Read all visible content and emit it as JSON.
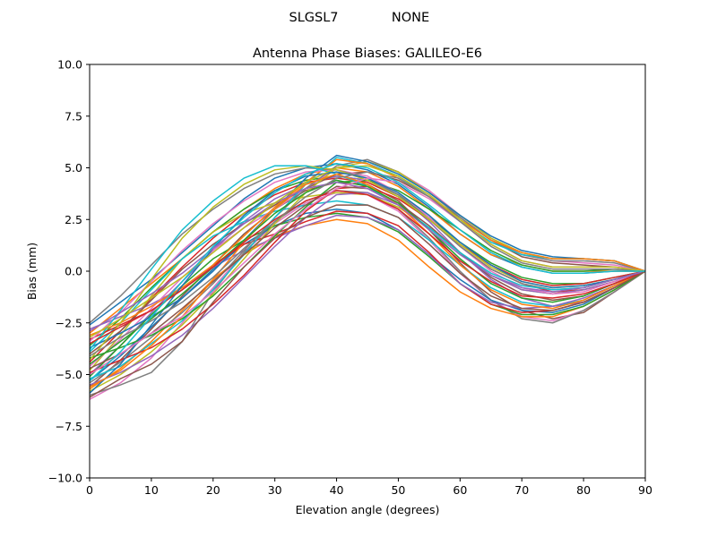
{
  "suptitle_left": "SLGSL7",
  "suptitle_right": "NONE",
  "chart_data": {
    "type": "line",
    "title": "Antenna Phase Biases: GALILEO-E6",
    "xlabel": "Elevation angle (degrees)",
    "ylabel": "Bias (mm)",
    "xlim": [
      0,
      90
    ],
    "ylim": [
      -10,
      10
    ],
    "xticks": [
      "0",
      "10",
      "20",
      "30",
      "40",
      "50",
      "60",
      "70",
      "80",
      "90"
    ],
    "yticks": [
      "10.0",
      "7.5",
      "5.0",
      "2.5",
      "0.0",
      "−2.5",
      "−5.0",
      "−7.5",
      "−10.0"
    ],
    "grid": false,
    "legend": "none",
    "x": [
      0,
      5,
      10,
      15,
      20,
      25,
      30,
      35,
      40,
      45,
      50,
      55,
      60,
      65,
      70,
      75,
      80,
      85,
      90
    ],
    "colors": [
      "#1f77b4",
      "#ff7f0e",
      "#2ca02c",
      "#d62728",
      "#9467bd",
      "#8c564b",
      "#e377c2",
      "#7f7f7f",
      "#bcbd22",
      "#17becf"
    ],
    "series": [
      {
        "values": [
          -2.6,
          -1.5,
          -0.4,
          0.9,
          2.2,
          3.5,
          4.5,
          5.0,
          5.2,
          4.9,
          4.2,
          3.1,
          1.8,
          0.8,
          0.2,
          -0.1,
          -0.1,
          0.0,
          0.0
        ]
      },
      {
        "values": [
          -3.0,
          -1.8,
          -0.6,
          0.6,
          1.9,
          3.0,
          4.0,
          4.7,
          5.0,
          4.8,
          4.1,
          3.0,
          1.8,
          0.8,
          0.3,
          0.0,
          0.0,
          0.0,
          0.0
        ]
      },
      {
        "values": [
          -3.6,
          -2.3,
          -0.8,
          0.6,
          1.9,
          3.0,
          3.9,
          4.4,
          4.6,
          4.4,
          3.7,
          2.6,
          1.4,
          0.4,
          -0.3,
          -0.6,
          -0.6,
          -0.3,
          0.0
        ]
      },
      {
        "values": [
          -4.4,
          -2.9,
          -1.3,
          0.2,
          1.6,
          2.8,
          3.7,
          4.3,
          4.5,
          4.3,
          3.6,
          2.5,
          1.2,
          0.1,
          -0.6,
          -1.0,
          -0.9,
          -0.5,
          0.0
        ]
      },
      {
        "values": [
          -5.0,
          -3.6,
          -2.0,
          -0.5,
          1.0,
          2.4,
          3.5,
          4.2,
          4.6,
          4.4,
          3.7,
          2.4,
          0.9,
          -0.4,
          -1.3,
          -1.7,
          -1.5,
          -0.8,
          0.0
        ]
      },
      {
        "values": [
          -5.6,
          -4.3,
          -2.8,
          -1.2,
          0.3,
          1.8,
          3.0,
          3.9,
          4.3,
          4.2,
          3.4,
          2.0,
          0.4,
          -1.0,
          -1.9,
          -2.3,
          -2.0,
          -1.0,
          0.0
        ]
      },
      {
        "values": [
          -6.2,
          -5.4,
          -4.2,
          -2.5,
          -0.8,
          0.9,
          2.3,
          3.3,
          3.8,
          3.7,
          2.9,
          1.5,
          -0.1,
          -1.4,
          -2.2,
          -2.4,
          -1.9,
          -1.0,
          0.0
        ]
      },
      {
        "values": [
          -6.0,
          -5.5,
          -4.9,
          -3.4,
          -1.0,
          0.9,
          2.4,
          3.4,
          3.9,
          3.8,
          3.0,
          1.6,
          0.0,
          -1.4,
          -2.3,
          -2.5,
          -1.9,
          -1.0,
          0.0
        ]
      },
      {
        "values": [
          -4.8,
          -3.1,
          -1.2,
          0.6,
          1.9,
          2.8,
          3.3,
          3.6,
          3.8,
          3.7,
          3.1,
          2.1,
          0.9,
          -0.2,
          -0.9,
          -1.1,
          -0.9,
          -0.5,
          0.0
        ]
      },
      {
        "values": [
          -3.9,
          -2.5,
          -0.9,
          0.6,
          1.7,
          2.4,
          2.9,
          3.2,
          3.4,
          3.2,
          2.6,
          1.5,
          0.3,
          -0.8,
          -1.5,
          -1.7,
          -1.4,
          -0.7,
          0.0
        ]
      },
      {
        "values": [
          -5.3,
          -4.1,
          -2.7,
          -1.3,
          0.1,
          1.3,
          2.2,
          2.8,
          3.0,
          2.8,
          2.0,
          0.8,
          -0.4,
          -1.4,
          -1.9,
          -2.0,
          -1.6,
          -0.8,
          0.0
        ]
      },
      {
        "values": [
          -5.7,
          -4.7,
          -3.4,
          -1.9,
          -0.4,
          0.8,
          1.7,
          2.2,
          2.5,
          2.3,
          1.5,
          0.2,
          -1.0,
          -1.8,
          -2.2,
          -2.2,
          -1.7,
          -0.9,
          0.0
        ]
      },
      {
        "values": [
          -5.1,
          -3.6,
          -2.1,
          -0.7,
          0.6,
          1.5,
          2.2,
          2.6,
          2.8,
          2.6,
          1.9,
          0.7,
          -0.6,
          -1.6,
          -2.1,
          -2.1,
          -1.7,
          -0.9,
          0.0
        ]
      },
      {
        "values": [
          -3.3,
          -2.6,
          -1.9,
          -0.9,
          0.3,
          1.3,
          1.8,
          2.4,
          2.9,
          2.8,
          2.2,
          0.9,
          -0.6,
          -1.6,
          -2.0,
          -1.9,
          -1.5,
          -0.8,
          0.0
        ]
      },
      {
        "values": [
          -2.8,
          -2.2,
          -1.6,
          -0.8,
          0.2,
          1.0,
          1.6,
          2.2,
          2.7,
          2.6,
          2.0,
          0.8,
          -0.6,
          -1.5,
          -1.8,
          -1.7,
          -1.3,
          -0.7,
          0.0
        ]
      },
      {
        "values": [
          -4.0,
          -2.9,
          -1.4,
          0.1,
          1.3,
          2.3,
          3.2,
          4.0,
          4.7,
          4.8,
          4.4,
          3.6,
          2.6,
          1.5,
          0.7,
          0.4,
          0.3,
          0.2,
          0.0
        ]
      },
      {
        "values": [
          -4.6,
          -3.3,
          -1.8,
          -0.3,
          1.0,
          2.1,
          3.0,
          4.0,
          5.0,
          5.3,
          4.8,
          3.9,
          2.7,
          1.6,
          0.8,
          0.5,
          0.4,
          0.3,
          0.0
        ]
      },
      {
        "values": [
          -5.4,
          -4.4,
          -3.2,
          -2.0,
          -0.6,
          1.0,
          2.6,
          4.0,
          5.1,
          5.4,
          4.8,
          3.8,
          2.6,
          1.5,
          0.8,
          0.5,
          0.5,
          0.4,
          0.0
        ]
      },
      {
        "values": [
          -5.8,
          -5.0,
          -3.9,
          -2.6,
          -1.1,
          0.6,
          2.3,
          3.8,
          5.0,
          5.3,
          4.8,
          3.8,
          2.7,
          1.6,
          0.9,
          0.6,
          0.6,
          0.5,
          0.0
        ]
      },
      {
        "values": [
          -5.2,
          -4.6,
          -3.5,
          -2.4,
          -0.9,
          0.8,
          2.6,
          4.2,
          5.5,
          5.2,
          4.6,
          3.6,
          2.4,
          1.4,
          0.8,
          0.6,
          0.6,
          0.5,
          0.0
        ]
      },
      {
        "values": [
          -3.7,
          -3.0,
          -2.2,
          -1.3,
          0.0,
          1.5,
          3.0,
          4.5,
          5.6,
          5.3,
          4.7,
          3.8,
          2.7,
          1.7,
          1.0,
          0.7,
          0.6,
          0.5,
          0.0
        ]
      },
      {
        "values": [
          -3.1,
          -2.5,
          -1.7,
          -0.8,
          0.3,
          1.7,
          3.1,
          4.3,
          5.4,
          5.2,
          4.5,
          3.6,
          2.5,
          1.5,
          0.9,
          0.6,
          0.6,
          0.5,
          0.0
        ]
      },
      {
        "values": [
          -4.2,
          -3.7,
          -3.1,
          -2.3,
          -1.2,
          0.2,
          1.7,
          3.1,
          4.3,
          4.4,
          3.9,
          3.0,
          2.0,
          1.0,
          0.3,
          0.0,
          0.0,
          0.1,
          0.0
        ]
      },
      {
        "values": [
          -4.9,
          -4.3,
          -3.7,
          -2.8,
          -1.6,
          -0.2,
          1.4,
          2.9,
          4.0,
          4.1,
          3.5,
          2.5,
          1.3,
          0.3,
          -0.4,
          -0.7,
          -0.6,
          -0.3,
          0.0
        ]
      },
      {
        "values": [
          -5.5,
          -4.9,
          -4.1,
          -3.1,
          -1.8,
          -0.3,
          1.2,
          2.6,
          3.7,
          3.8,
          3.2,
          2.1,
          0.9,
          -0.2,
          -0.9,
          -1.1,
          -0.9,
          -0.5,
          0.0
        ]
      },
      {
        "values": [
          -4.7,
          -4.0,
          -3.0,
          -1.8,
          -0.5,
          0.8,
          2.1,
          3.2,
          4.1,
          4.0,
          3.3,
          2.2,
          0.9,
          -0.3,
          -1.1,
          -1.4,
          -1.2,
          -0.6,
          0.0
        ]
      },
      {
        "values": [
          -3.4,
          -2.0,
          -0.5,
          1.0,
          2.3,
          3.4,
          4.3,
          4.8,
          4.9,
          4.6,
          3.8,
          2.6,
          1.2,
          0.0,
          -0.8,
          -1.1,
          -1.0,
          -0.5,
          0.0
        ]
      },
      {
        "values": [
          -2.5,
          -1.2,
          0.3,
          1.8,
          3.0,
          4.0,
          4.7,
          5.0,
          4.9,
          4.5,
          3.7,
          2.5,
          1.2,
          0.1,
          -0.6,
          -0.9,
          -0.8,
          -0.4,
          0.0
        ]
      },
      {
        "values": [
          -4.3,
          -2.5,
          -0.4,
          1.6,
          3.1,
          4.2,
          4.9,
          5.1,
          4.9,
          4.4,
          3.6,
          2.5,
          1.3,
          0.2,
          -0.5,
          -0.8,
          -0.7,
          -0.4,
          0.0
        ]
      },
      {
        "values": [
          -3.8,
          -1.9,
          0.1,
          2.0,
          3.4,
          4.5,
          5.1,
          5.1,
          4.7,
          4.1,
          3.2,
          2.1,
          0.9,
          -0.1,
          -0.7,
          -0.9,
          -0.8,
          -0.4,
          0.0
        ]
      },
      {
        "values": [
          -5.9,
          -4.5,
          -2.6,
          -0.7,
          1.1,
          2.7,
          3.9,
          4.6,
          4.8,
          4.5,
          3.8,
          2.7,
          1.4,
          0.3,
          -0.5,
          -0.8,
          -0.7,
          -0.4,
          0.0
        ]
      },
      {
        "values": [
          -5.6,
          -4.8,
          -3.6,
          -2.2,
          -0.4,
          1.4,
          3.0,
          4.2,
          4.7,
          4.2,
          3.2,
          1.8,
          0.3,
          -0.9,
          -1.6,
          -1.8,
          -1.4,
          -0.7,
          0.0
        ]
      },
      {
        "values": [
          -4.5,
          -3.4,
          -2.3,
          -1.1,
          0.2,
          1.5,
          2.8,
          3.8,
          4.4,
          4.1,
          3.3,
          2.0,
          0.6,
          -0.6,
          -1.3,
          -1.5,
          -1.2,
          -0.6,
          0.0
        ]
      },
      {
        "values": [
          -3.5,
          -2.7,
          -1.9,
          -0.9,
          0.2,
          1.4,
          2.5,
          3.4,
          3.9,
          3.7,
          3.0,
          1.8,
          0.5,
          -0.5,
          -1.2,
          -1.3,
          -1.1,
          -0.6,
          0.0
        ]
      },
      {
        "values": [
          -2.9,
          -2.0,
          -1.1,
          -0.1,
          1.1,
          2.3,
          3.3,
          4.0,
          4.3,
          4.0,
          3.2,
          2.0,
          0.8,
          -0.2,
          -0.8,
          -1.0,
          -0.8,
          -0.4,
          0.0
        ]
      },
      {
        "values": [
          -6.1,
          -5.2,
          -4.5,
          -3.4,
          -1.5,
          0.2,
          1.6,
          2.6,
          3.2,
          3.2,
          2.6,
          1.3,
          -0.1,
          -1.2,
          -1.8,
          -1.9,
          -1.5,
          -0.8,
          0.0
        ]
      },
      {
        "values": [
          -5.0,
          -4.0,
          -3.0,
          -2.2,
          -1.0,
          0.4,
          1.8,
          3.0,
          4.0,
          4.5,
          4.3,
          3.5,
          2.4,
          1.3,
          0.5,
          0.2,
          0.2,
          0.2,
          0.0
        ]
      },
      {
        "values": [
          -4.1,
          -3.2,
          -2.4,
          -1.5,
          -0.3,
          1.1,
          2.4,
          3.6,
          4.5,
          4.8,
          4.5,
          3.6,
          2.4,
          1.2,
          0.4,
          0.1,
          0.1,
          0.1,
          0.0
        ]
      },
      {
        "values": [
          -3.2,
          -2.3,
          -1.3,
          -0.3,
          0.9,
          2.1,
          3.3,
          4.3,
          5.0,
          5.1,
          4.6,
          3.7,
          2.5,
          1.3,
          0.5,
          0.2,
          0.2,
          0.2,
          0.0
        ]
      },
      {
        "values": [
          -5.3,
          -3.9,
          -2.2,
          -0.5,
          1.2,
          2.6,
          3.8,
          4.7,
          5.2,
          5.0,
          4.3,
          3.2,
          2.0,
          0.9,
          0.2,
          -0.1,
          -0.1,
          0.0,
          0.0
        ]
      }
    ]
  }
}
